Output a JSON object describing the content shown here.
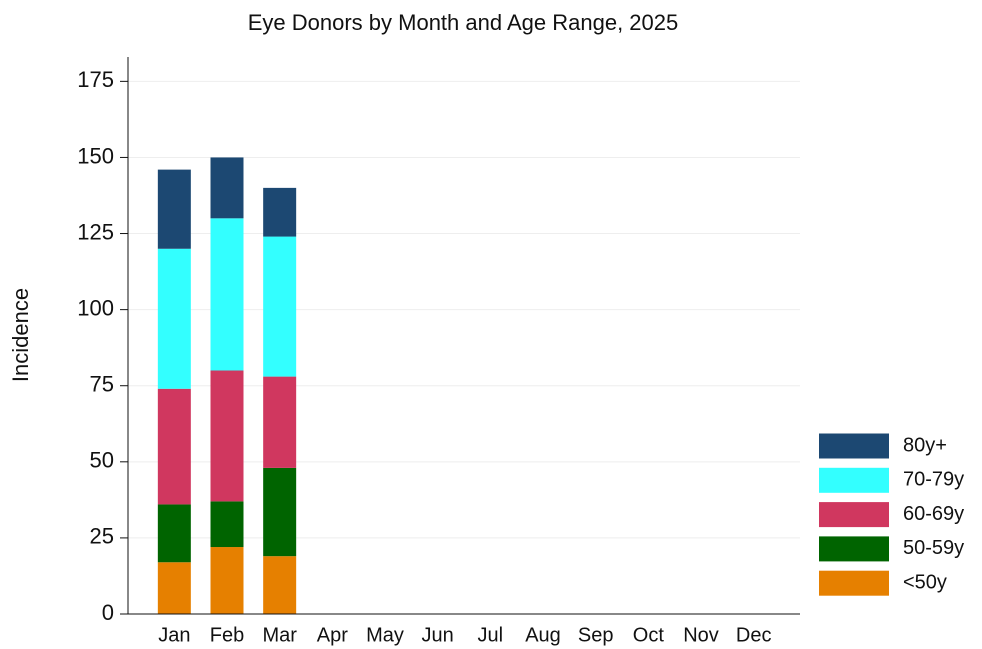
{
  "chart_data": {
    "type": "stacked_bar",
    "title": "Eye Donors by Month and Age Range, 2025",
    "y_label": "Incidence",
    "categories": [
      "Jan",
      "Feb",
      "Mar",
      "Apr",
      "May",
      "Jun",
      "Jul",
      "Aug",
      "Sep",
      "Oct",
      "Nov",
      "Dec"
    ],
    "series": [
      {
        "name": "<50y",
        "color": "#e68000",
        "values": [
          17,
          22,
          19,
          null,
          null,
          null,
          null,
          null,
          null,
          null,
          null,
          null
        ]
      },
      {
        "name": "50-59y",
        "color": "#006400",
        "values": [
          19,
          15,
          29,
          null,
          null,
          null,
          null,
          null,
          null,
          null,
          null,
          null
        ]
      },
      {
        "name": "60-69y",
        "color": "#d0375f",
        "values": [
          38,
          43,
          30,
          null,
          null,
          null,
          null,
          null,
          null,
          null,
          null,
          null
        ]
      },
      {
        "name": "70-79y",
        "color": "#33ffff",
        "values": [
          46,
          50,
          46,
          null,
          null,
          null,
          null,
          null,
          null,
          null,
          null,
          null
        ]
      },
      {
        "name": "80y+",
        "color": "#1c4872",
        "values": [
          26,
          20,
          16,
          null,
          null,
          null,
          null,
          null,
          null,
          null,
          null,
          null
        ]
      }
    ],
    "ylim": [
      0,
      183
    ],
    "yticks": [
      0,
      25,
      50,
      75,
      100,
      125,
      150,
      175
    ],
    "grid": true,
    "legend": "right"
  }
}
